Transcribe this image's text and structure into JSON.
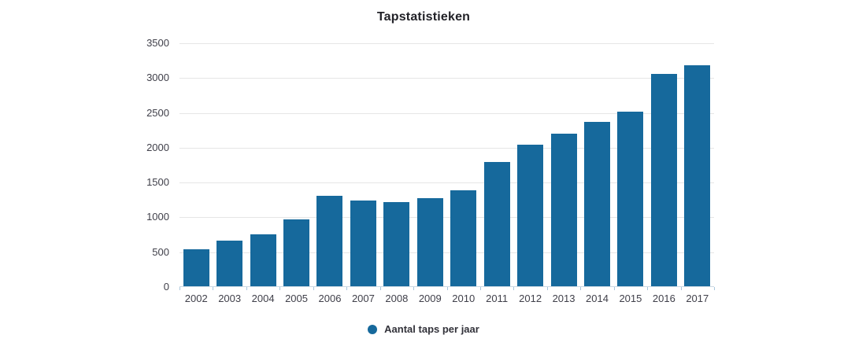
{
  "chart_data": {
    "type": "bar",
    "title": "Tapstatistieken",
    "categories": [
      "2002",
      "2003",
      "2004",
      "2005",
      "2006",
      "2007",
      "2008",
      "2009",
      "2010",
      "2011",
      "2012",
      "2013",
      "2014",
      "2015",
      "2016",
      "2017"
    ],
    "series": [
      {
        "name": "Aantal taps per jaar",
        "values": [
          540,
          670,
          755,
          970,
          1310,
          1240,
          1220,
          1275,
          1385,
          1800,
          2045,
          2205,
          2375,
          2515,
          3065,
          3180
        ]
      }
    ],
    "xlabel": "",
    "ylabel": "",
    "ylim": [
      0,
      3500
    ],
    "ytick_step": 500,
    "grid": true,
    "legend_position": "bottom"
  },
  "colors": {
    "bar": "#16699c",
    "grid": "#e6e6e6",
    "axis": "#ccd9e3",
    "tick": "#a9c7dd",
    "title_text": "#222228",
    "axis_text": "#3f3f49"
  }
}
